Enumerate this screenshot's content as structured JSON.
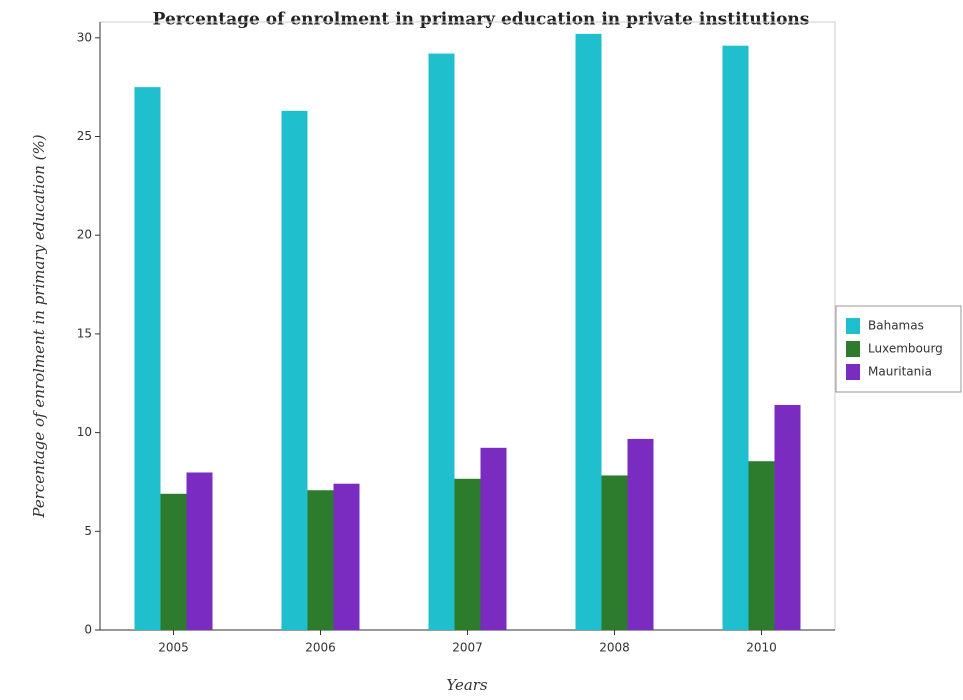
{
  "chart_data": {
    "type": "bar",
    "title": "Percentage of enrolment in primary education in private institutions",
    "x_label": "Years",
    "y_label": "Percentage of enrolment in primary education (%)",
    "categories": [
      "2005",
      "2006",
      "2007",
      "2008",
      "2010"
    ],
    "series": [
      {
        "name": "Bahamas",
        "color": "#1fbfcd",
        "values": [
          27.5,
          26.3,
          29.2,
          30.2,
          29.6
        ]
      },
      {
        "name": "Luxembourg",
        "color": "#2d7b2d",
        "values": [
          6.9,
          7.08,
          7.66,
          7.83,
          8.55
        ]
      },
      {
        "name": "Mauritania",
        "color": "#7a2cc0",
        "values": [
          7.98,
          7.41,
          9.23,
          9.68,
          11.4
        ]
      }
    ],
    "ylim": [
      0,
      30.8
    ],
    "yticks": [
      0,
      5,
      10,
      15,
      20,
      25,
      30
    ],
    "legend": "right"
  }
}
